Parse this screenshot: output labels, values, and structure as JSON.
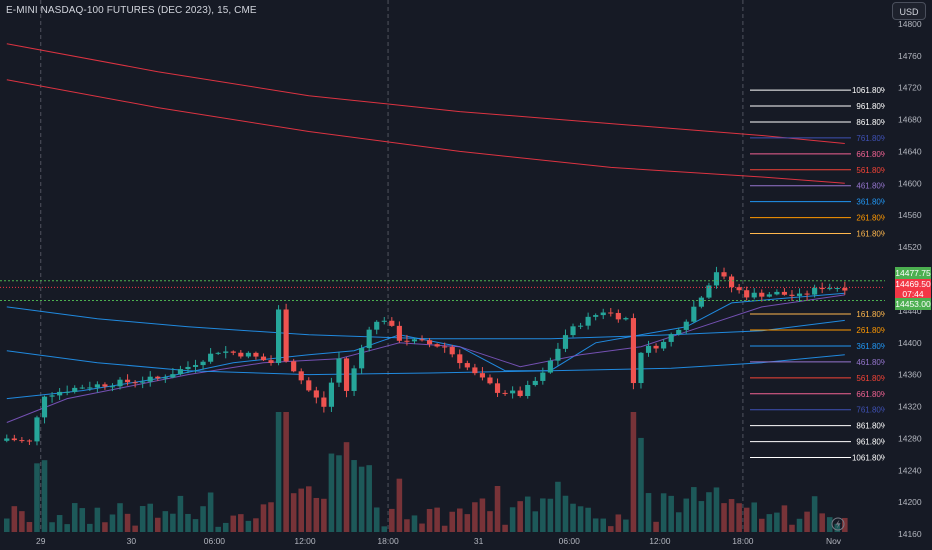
{
  "header": {
    "title": "E-MINI NASDAQ-100 FUTURES (DEC 2023), 15, CME",
    "currency_button": "USD"
  },
  "price_tags": {
    "upper": "14477.75",
    "current_price": "14469.50",
    "countdown": "07:44",
    "lower": "14453.00"
  },
  "colors": {
    "background": "#161a25",
    "up": "#26a69a",
    "down": "#ef5350",
    "ma_fast": "#2196f3",
    "ma_slow": "#7e57c2",
    "ma_long": "#f23645",
    "accent_green": "#4caf50"
  },
  "icons": [
    "lightning-icon"
  ],
  "chart_data": {
    "type": "candlestick",
    "title": "E-MINI NASDAQ-100 FUTURES (DEC 2023), 15, CME",
    "currency": "USD",
    "ylim": [
      14140,
      14830
    ],
    "yticks": [
      14800,
      14760,
      14720,
      14680,
      14640,
      14600,
      14560,
      14520,
      14480,
      14440,
      14400,
      14360,
      14320,
      14280,
      14240,
      14200,
      14160
    ],
    "xticks": [
      {
        "label": "29",
        "bar": 5
      },
      {
        "label": "30",
        "bar": 17
      },
      {
        "label": "06:00",
        "bar": 28
      },
      {
        "label": "12:00",
        "bar": 40
      },
      {
        "label": "18:00",
        "bar": 51
      },
      {
        "label": "31",
        "bar": 63
      },
      {
        "label": "06:00",
        "bar": 75
      },
      {
        "label": "12:00",
        "bar": 87
      },
      {
        "label": "18:00",
        "bar": 98
      },
      {
        "label": "Nov",
        "bar": 110
      }
    ],
    "session_separators": [
      5,
      51,
      98
    ],
    "bar_count": 112,
    "close_key": [
      [
        0,
        14280
      ],
      [
        3,
        14275
      ],
      [
        5,
        14335
      ],
      [
        10,
        14345
      ],
      [
        15,
        14350
      ],
      [
        20,
        14355
      ],
      [
        24,
        14370
      ],
      [
        28,
        14390
      ],
      [
        32,
        14385
      ],
      [
        35,
        14375
      ],
      [
        36,
        14440
      ],
      [
        37,
        14380
      ],
      [
        40,
        14340
      ],
      [
        42,
        14320
      ],
      [
        44,
        14380
      ],
      [
        45,
        14340
      ],
      [
        48,
        14420
      ],
      [
        50,
        14430
      ],
      [
        52,
        14405
      ],
      [
        55,
        14400
      ],
      [
        58,
        14395
      ],
      [
        62,
        14360
      ],
      [
        65,
        14340
      ],
      [
        68,
        14335
      ],
      [
        71,
        14360
      ],
      [
        74,
        14410
      ],
      [
        76,
        14425
      ],
      [
        79,
        14440
      ],
      [
        82,
        14430
      ],
      [
        83,
        14350
      ],
      [
        84,
        14390
      ],
      [
        87,
        14400
      ],
      [
        90,
        14430
      ],
      [
        93,
        14475
      ],
      [
        94,
        14490
      ],
      [
        96,
        14470
      ],
      [
        98,
        14460
      ],
      [
        102,
        14462
      ],
      [
        105,
        14458
      ],
      [
        108,
        14470
      ],
      [
        111,
        14469.5
      ]
    ],
    "moving_averages": [
      {
        "key": "ma_fast",
        "points": [
          [
            0,
            14330
          ],
          [
            10,
            14340
          ],
          [
            20,
            14355
          ],
          [
            30,
            14375
          ],
          [
            40,
            14385
          ],
          [
            46,
            14390
          ],
          [
            52,
            14410
          ],
          [
            60,
            14395
          ],
          [
            66,
            14365
          ],
          [
            72,
            14365
          ],
          [
            78,
            14400
          ],
          [
            84,
            14410
          ],
          [
            90,
            14420
          ],
          [
            96,
            14450
          ],
          [
            102,
            14455
          ],
          [
            111,
            14462
          ]
        ]
      },
      {
        "key": "ma_slow",
        "points": [
          [
            0,
            14300
          ],
          [
            8,
            14330
          ],
          [
            16,
            14345
          ],
          [
            24,
            14360
          ],
          [
            34,
            14375
          ],
          [
            44,
            14380
          ],
          [
            52,
            14400
          ],
          [
            60,
            14395
          ],
          [
            68,
            14370
          ],
          [
            76,
            14385
          ],
          [
            84,
            14395
          ],
          [
            92,
            14420
          ],
          [
            100,
            14445
          ],
          [
            111,
            14460
          ]
        ]
      },
      {
        "key": "ma_fast",
        "points": [
          [
            0,
            14445
          ],
          [
            12,
            14430
          ],
          [
            24,
            14420
          ],
          [
            40,
            14410
          ],
          [
            56,
            14405
          ],
          [
            72,
            14405
          ],
          [
            88,
            14410
          ],
          [
            100,
            14415
          ],
          [
            111,
            14428
          ]
        ]
      },
      {
        "key": "ma_fast",
        "points": [
          [
            0,
            14390
          ],
          [
            12,
            14375
          ],
          [
            24,
            14365
          ],
          [
            40,
            14360
          ],
          [
            56,
            14362
          ],
          [
            72,
            14365
          ],
          [
            88,
            14368
          ],
          [
            100,
            14375
          ],
          [
            111,
            14385
          ]
        ]
      },
      {
        "key": "ma_long",
        "points": [
          [
            0,
            14775
          ],
          [
            20,
            14740
          ],
          [
            40,
            14710
          ],
          [
            60,
            14690
          ],
          [
            80,
            14675
          ],
          [
            100,
            14660
          ],
          [
            111,
            14650
          ]
        ]
      },
      {
        "key": "ma_long",
        "points": [
          [
            0,
            14730
          ],
          [
            20,
            14695
          ],
          [
            40,
            14665
          ],
          [
            60,
            14640
          ],
          [
            80,
            14620
          ],
          [
            100,
            14608
          ],
          [
            111,
            14600
          ]
        ]
      }
    ],
    "fib_levels": [
      {
        "label": "1061.80%",
        "price": 14717,
        "color": "#ffffff"
      },
      {
        "label": "961.80%",
        "price": 14697,
        "color": "#ffffff"
      },
      {
        "label": "861.80%",
        "price": 14677,
        "color": "#ffffff"
      },
      {
        "label": "761.80%",
        "price": 14657,
        "color": "#3f51b5"
      },
      {
        "label": "661.80%",
        "price": 14637,
        "color": "#f06292"
      },
      {
        "label": "561.80%",
        "price": 14617,
        "color": "#f44336"
      },
      {
        "label": "461.80%",
        "price": 14597,
        "color": "#9575cd"
      },
      {
        "label": "361.80%",
        "price": 14577,
        "color": "#2196f3"
      },
      {
        "label": "261.80%",
        "price": 14557,
        "color": "#ff9800"
      },
      {
        "label": "161.80%",
        "price": 14537,
        "color": "#ffb74d"
      },
      {
        "label": "161.80%",
        "price": 14436,
        "color": "#ffb74d"
      },
      {
        "label": "261.80%",
        "price": 14416,
        "color": "#ff9800"
      },
      {
        "label": "361.80%",
        "price": 14396,
        "color": "#2196f3"
      },
      {
        "label": "461.80%",
        "price": 14376,
        "color": "#9575cd"
      },
      {
        "label": "561.80%",
        "price": 14356,
        "color": "#f44336"
      },
      {
        "label": "661.80%",
        "price": 14336,
        "color": "#f06292"
      },
      {
        "label": "761.80%",
        "price": 14316,
        "color": "#3f51b5"
      },
      {
        "label": "861.80%",
        "price": 14296,
        "color": "#ffffff"
      },
      {
        "label": "961.80%",
        "price": 14276,
        "color": "#ffffff"
      },
      {
        "label": "1061.80%",
        "price": 14256,
        "color": "#ffffff"
      }
    ],
    "grid": false,
    "legend": "none"
  }
}
